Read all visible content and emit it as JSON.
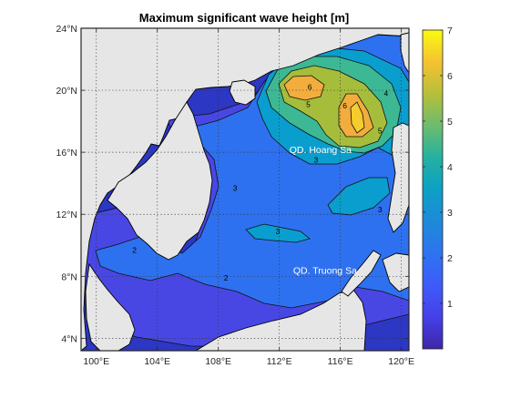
{
  "chart_data": {
    "type": "heatmap",
    "title": "Maximum significant wave height [m]",
    "x_ticks": [
      "100°E",
      "104°E",
      "108°E",
      "112°E",
      "116°E",
      "120°E"
    ],
    "x_values": [
      100,
      104,
      108,
      112,
      116,
      120
    ],
    "y_ticks": [
      "24°N",
      "20°N",
      "16°N",
      "12°N",
      "8°N",
      "4°N"
    ],
    "y_values": [
      24,
      20,
      16,
      12,
      8,
      4
    ],
    "xlim": [
      99,
      120.5
    ],
    "ylim": [
      3.2,
      24
    ],
    "grid": true,
    "colorbar": {
      "colormap": "parula",
      "range": [
        0,
        7
      ],
      "ticks": [
        "1",
        "2",
        "3",
        "4",
        "5",
        "6",
        "7"
      ],
      "tick_values": [
        1,
        2,
        3,
        4,
        5,
        6,
        7
      ]
    },
    "contour_levels": [
      1,
      2,
      3,
      4,
      5,
      6
    ],
    "contour_labels": [
      {
        "text": "2",
        "lon": 102.5,
        "lat": 9.7
      },
      {
        "text": "2",
        "lon": 108.5,
        "lat": 7.9
      },
      {
        "text": "3",
        "lon": 109.1,
        "lat": 13.7
      },
      {
        "text": "3",
        "lon": 114.4,
        "lat": 15.5
      },
      {
        "text": "3",
        "lon": 111.9,
        "lat": 10.9
      },
      {
        "text": "3",
        "lon": 118.6,
        "lat": 12.3
      },
      {
        "text": "4",
        "lon": 119.0,
        "lat": 19.8
      },
      {
        "text": "5",
        "lon": 113.9,
        "lat": 19.1
      },
      {
        "text": "5",
        "lon": 118.6,
        "lat": 17.4
      },
      {
        "text": "6",
        "lon": 114.0,
        "lat": 20.2
      },
      {
        "text": "6",
        "lon": 116.3,
        "lat": 19.0
      }
    ],
    "annotations": [
      {
        "text": "QD. Hoang Sa",
        "lon": 114.7,
        "lat": 16.2
      },
      {
        "text": "QD. Truong Sa",
        "lon": 115.0,
        "lat": 8.4
      }
    ]
  }
}
